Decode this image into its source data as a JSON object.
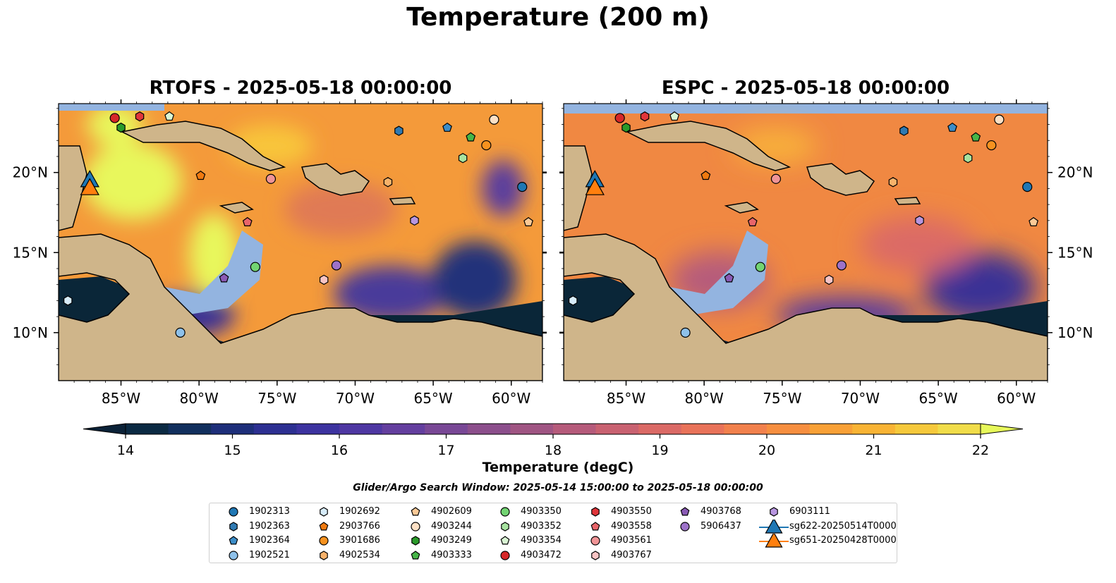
{
  "title": "Temperature (200 m)",
  "panels": [
    {
      "title": "RTOFS - 2025-05-18 00:00:00"
    },
    {
      "title": "ESPC - 2025-05-18 00:00:00"
    }
  ],
  "map_extent": {
    "lon": [
      -89,
      -58
    ],
    "lat": [
      7,
      24.3
    ]
  },
  "lon_ticks": [
    {
      "value": -85,
      "label": "85°W"
    },
    {
      "value": -80,
      "label": "80°W"
    },
    {
      "value": -75,
      "label": "75°W"
    },
    {
      "value": -70,
      "label": "70°W"
    },
    {
      "value": -65,
      "label": "65°W"
    },
    {
      "value": -60,
      "label": "60°W"
    }
  ],
  "lat_ticks": [
    {
      "value": 10,
      "label": "10°N"
    },
    {
      "value": 15,
      "label": "15°N"
    },
    {
      "value": 20,
      "label": "20°N"
    }
  ],
  "colorbar": {
    "label": "Temperature (degC)",
    "min": 14,
    "max": 22,
    "step": 0.5,
    "ticks": [
      "14",
      "15",
      "16",
      "17",
      "18",
      "19",
      "20",
      "21",
      "22"
    ],
    "under_color": "#0b2238",
    "over_color": "#e7f85a",
    "colors": [
      "#0b2a43",
      "#12305e",
      "#1e2f7a",
      "#2d3092",
      "#3d33a0",
      "#4f38a3",
      "#643f9f",
      "#794896",
      "#8c4f8c",
      "#a05583",
      "#b65b7b",
      "#c96271",
      "#db6a66",
      "#e9735a",
      "#f2814d",
      "#f78f40",
      "#f9a137",
      "#f9b435",
      "#f6c93c",
      "#f1dd4a"
    ]
  },
  "search_window": "Glider/Argo Search Window: 2025-05-14 15:00:00 to 2025-05-18 00:00:00",
  "colors": {
    "land": "#cfb58a",
    "shelf": "#93b4e0",
    "deep": "#0a2638",
    "warm": "#f49a3a",
    "hot": "#e8f75b"
  },
  "legend": [
    {
      "label": "1902313",
      "marker": "circle",
      "color": "#1f77b4"
    },
    {
      "label": "1902363",
      "marker": "hexagon",
      "color": "#2f7ab2"
    },
    {
      "label": "1902364",
      "marker": "pentagon",
      "color": "#3c8dc8"
    },
    {
      "label": "1902521",
      "marker": "circle",
      "color": "#8ec1ea"
    },
    {
      "label": "1902692",
      "marker": "hexagon",
      "color": "#d7ecfa"
    },
    {
      "label": "2903766",
      "marker": "pentagon",
      "color": "#f07a10"
    },
    {
      "label": "3901686",
      "marker": "circle",
      "color": "#f7921f"
    },
    {
      "label": "4902534",
      "marker": "hexagon",
      "color": "#f8b26a"
    },
    {
      "label": "4902609",
      "marker": "pentagon",
      "color": "#fbc996"
    },
    {
      "label": "4903244",
      "marker": "circle",
      "color": "#fde0c5"
    },
    {
      "label": "4903249",
      "marker": "hexagon",
      "color": "#2a9a2a"
    },
    {
      "label": "4903333",
      "marker": "pentagon",
      "color": "#47b548"
    },
    {
      "label": "4903350",
      "marker": "circle",
      "color": "#72d472"
    },
    {
      "label": "4903352",
      "marker": "hexagon",
      "color": "#a7e3a0"
    },
    {
      "label": "4903354",
      "marker": "pentagon",
      "color": "#daf6d4"
    },
    {
      "label": "4903472",
      "marker": "circle",
      "color": "#d62728"
    },
    {
      "label": "4903550",
      "marker": "hexagon",
      "color": "#e0353a"
    },
    {
      "label": "4903558",
      "marker": "pentagon",
      "color": "#e8656a"
    },
    {
      "label": "4903561",
      "marker": "circle",
      "color": "#f09496"
    },
    {
      "label": "4903767",
      "marker": "hexagon",
      "color": "#f9c4c4"
    },
    {
      "label": "4903768",
      "marker": "pentagon",
      "color": "#8a5ab5"
    },
    {
      "label": "5906437",
      "marker": "circle",
      "color": "#9d72c9"
    },
    {
      "label": "6903111",
      "marker": "hexagon",
      "color": "#b896e0"
    },
    {
      "label": "sg622-20250514T0000",
      "marker": "triangle",
      "color": "#1f77b4"
    },
    {
      "label": "sg651-20250428T0000",
      "marker": "triangle",
      "color": "#ff7f0e"
    }
  ],
  "profiles": [
    {
      "id": "4903472",
      "lon": -85.4,
      "lat": 23.4
    },
    {
      "id": "4903249",
      "lon": -85.0,
      "lat": 22.8
    },
    {
      "id": "4903550",
      "lon": -83.8,
      "lat": 23.5
    },
    {
      "id": "4903354",
      "lon": -81.9,
      "lat": 23.5
    },
    {
      "id": "1902363",
      "lon": -67.2,
      "lat": 22.6
    },
    {
      "id": "1902364",
      "lon": -64.1,
      "lat": 22.8
    },
    {
      "id": "4903333",
      "lon": -62.6,
      "lat": 22.2
    },
    {
      "id": "4903244",
      "lon": -61.1,
      "lat": 23.3
    },
    {
      "id": "3901686",
      "lon": -61.6,
      "lat": 21.7
    },
    {
      "id": "4903352",
      "lon": -63.1,
      "lat": 20.9
    },
    {
      "id": "2903766",
      "lon": -79.9,
      "lat": 19.8
    },
    {
      "id": "4903561",
      "lon": -75.4,
      "lat": 19.6
    },
    {
      "id": "4902534",
      "lon": -67.9,
      "lat": 19.4
    },
    {
      "id": "1902313",
      "lon": -59.3,
      "lat": 19.1
    },
    {
      "id": "4903558",
      "lon": -76.9,
      "lat": 16.9
    },
    {
      "id": "6903111",
      "lon": -66.2,
      "lat": 17.0
    },
    {
      "id": "4902609",
      "lon": -58.9,
      "lat": 16.9
    },
    {
      "id": "4903350",
      "lon": -76.4,
      "lat": 14.1
    },
    {
      "id": "5906437",
      "lon": -71.2,
      "lat": 14.2
    },
    {
      "id": "4903768",
      "lon": -78.4,
      "lat": 13.4
    },
    {
      "id": "4903767",
      "lon": -72.0,
      "lat": 13.3
    },
    {
      "id": "1902692",
      "lon": -88.4,
      "lat": 12.0
    },
    {
      "id": "1902521",
      "lon": -81.2,
      "lat": 10.0
    }
  ],
  "gliders": [
    {
      "id": "sg622-20250514T0000",
      "lon": -87.0,
      "lat": 19.5
    },
    {
      "id": "sg651-20250428T0000",
      "lon": -87.0,
      "lat": 19.0
    }
  ]
}
